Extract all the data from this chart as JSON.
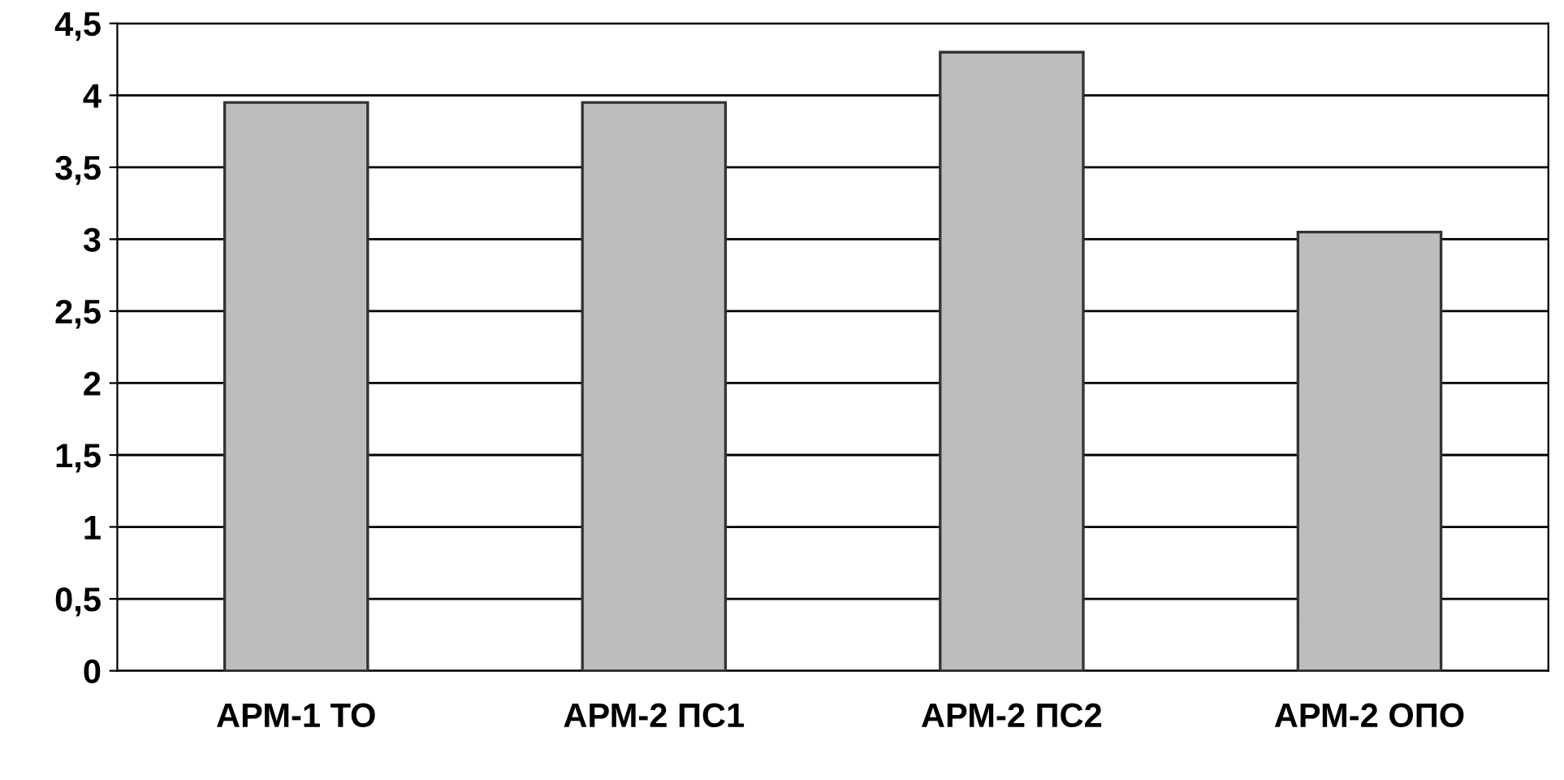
{
  "chart_data": {
    "type": "bar",
    "categories": [
      "АРМ-1 ТО",
      "АРМ-2 ПС1",
      "АРМ-2 ПС2",
      "АРМ-2 ОПО"
    ],
    "values": [
      3.95,
      3.95,
      4.3,
      3.05
    ],
    "color": "#bdbdbd",
    "ylim": [
      0,
      4.5
    ],
    "yticks": [
      0,
      {
        "value": 0.5,
        "label": "0,5"
      },
      1,
      {
        "value": 1.5,
        "label": "1,5"
      },
      2,
      {
        "value": 2.5,
        "label": "2,5"
      },
      3,
      {
        "value": 3.5,
        "label": "3,5"
      },
      4,
      {
        "value": 4.5,
        "label": "4,5"
      }
    ],
    "grid": "y",
    "legend": false
  }
}
